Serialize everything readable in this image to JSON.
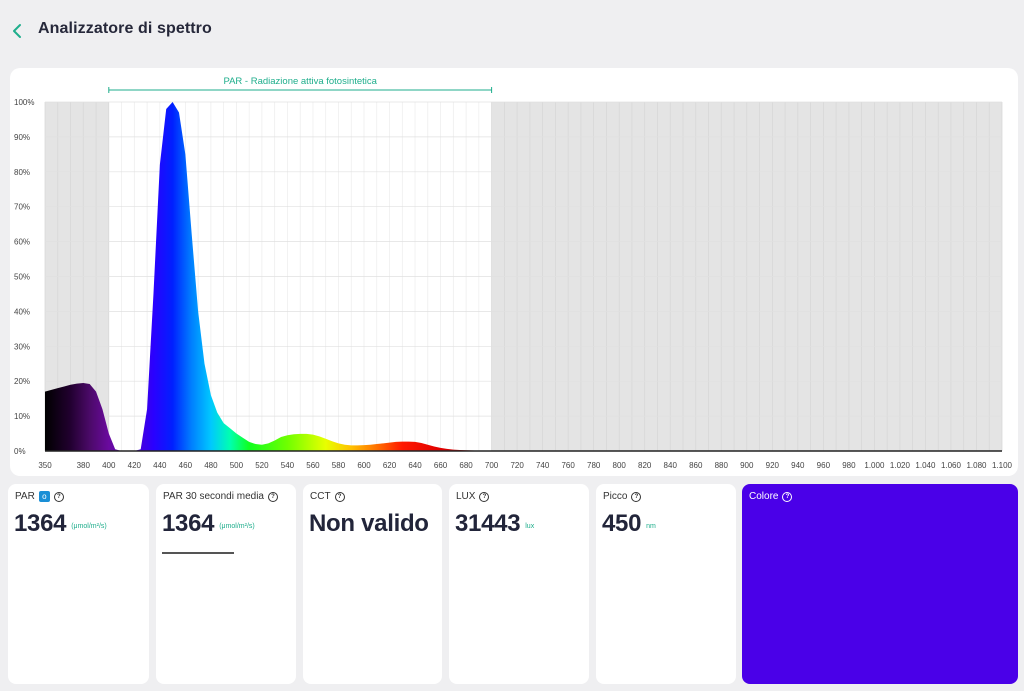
{
  "header": {
    "title": "Analizzatore di spettro",
    "back_icon": "chevron-left-icon",
    "accent": "#1fae8c"
  },
  "chart_data": {
    "type": "area",
    "title": "",
    "xlabel": "",
    "ylabel": "",
    "xlim": [
      350,
      1100
    ],
    "ylim": [
      0,
      100
    ],
    "x_ticks": [
      "350",
      "380",
      "400",
      "420",
      "440",
      "460",
      "480",
      "500",
      "520",
      "540",
      "560",
      "580",
      "600",
      "620",
      "640",
      "660",
      "680",
      "700",
      "720",
      "740",
      "760",
      "780",
      "800",
      "820",
      "840",
      "860",
      "880",
      "900",
      "920",
      "940",
      "960",
      "980",
      "1.000",
      "1.020",
      "1.040",
      "1.060",
      "1.080",
      "1.100"
    ],
    "y_ticks": [
      "0%",
      "10%",
      "20%",
      "30%",
      "40%",
      "50%",
      "60%",
      "70%",
      "80%",
      "90%",
      "100%"
    ],
    "par_band": {
      "label": "PAR - Radiazione attiva fotosintetica",
      "from": 400,
      "to": 700
    },
    "series": [
      {
        "x": [
          350,
          355,
          360,
          365,
          370,
          375,
          380,
          385,
          390,
          395,
          400,
          405,
          410,
          415,
          420,
          425,
          430,
          435,
          440,
          445,
          450,
          455,
          460,
          465,
          470,
          475,
          480,
          485,
          490,
          495,
          500,
          505,
          510,
          515,
          520,
          525,
          530,
          535,
          540,
          545,
          550,
          555,
          560,
          565,
          570,
          575,
          580,
          585,
          590,
          595,
          600,
          605,
          610,
          615,
          620,
          625,
          630,
          635,
          640,
          645,
          650,
          655,
          660,
          665,
          670,
          675,
          680,
          690,
          700,
          720,
          750,
          800,
          850,
          900,
          950,
          1000,
          1050,
          1100
        ],
        "y": [
          17,
          17.5,
          18,
          18.5,
          19,
          19.3,
          19.5,
          19.2,
          17,
          12,
          5,
          0.5,
          0,
          0,
          0,
          0.5,
          12,
          45,
          82,
          98,
          100,
          97,
          85,
          62,
          40,
          25,
          16,
          11,
          8,
          6.5,
          5,
          3.8,
          2.6,
          2,
          1.8,
          2.2,
          3,
          4,
          4.5,
          4.8,
          4.9,
          4.9,
          4.7,
          4.2,
          3.5,
          2.8,
          2.2,
          1.8,
          1.6,
          1.6,
          1.7,
          1.8,
          2,
          2.2,
          2.4,
          2.6,
          2.7,
          2.7,
          2.6,
          2.3,
          1.8,
          1.3,
          0.9,
          0.6,
          0.4,
          0.3,
          0.2,
          0.1,
          0.1,
          0.05,
          0,
          0,
          0,
          0,
          0,
          0,
          0,
          0
        ]
      }
    ]
  },
  "cards": [
    {
      "label": "PAR",
      "badge": "o",
      "value": "1364",
      "unit": "(μmol/m²/s)"
    },
    {
      "label": "PAR 30 secondi media",
      "value": "1364",
      "unit": "(μmol/m²/s)"
    },
    {
      "label": "CCT",
      "value": "Non valido",
      "unit": ""
    },
    {
      "label": "LUX",
      "value": "31443",
      "unit": "lux"
    },
    {
      "label": "Picco",
      "value": "450",
      "unit": "nm"
    },
    {
      "label": "Colore",
      "color": "#4a00e8"
    }
  ],
  "colors": {
    "grey_region": "#e4e4e4",
    "par_region": "#ffffff",
    "text": "#22253a",
    "accent": "#1fae8c"
  }
}
